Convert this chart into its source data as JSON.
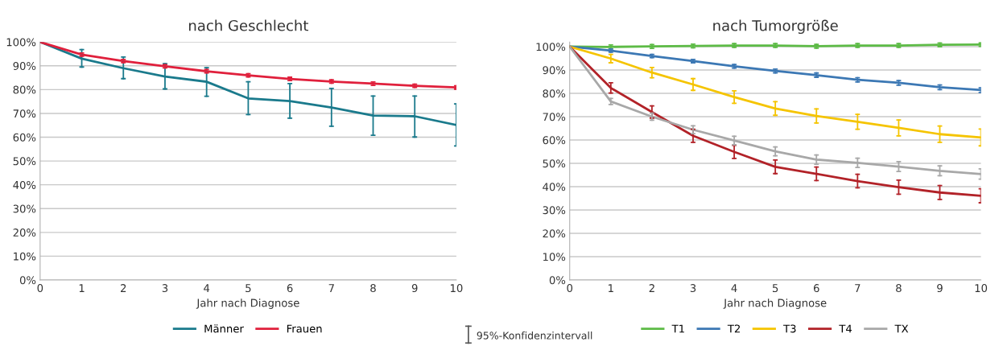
{
  "chart_data": [
    {
      "type": "line",
      "title": "nach Geschlecht",
      "xlabel": "Jahr nach Diagnose",
      "x": [
        0,
        1,
        2,
        3,
        4,
        5,
        6,
        7,
        8,
        9,
        10
      ],
      "xlim": [
        0,
        10
      ],
      "xticks": [
        0,
        1,
        2,
        3,
        4,
        5,
        6,
        7,
        8,
        9,
        10
      ],
      "ylim": [
        0,
        100
      ],
      "yticks": [
        {
          "value": 0,
          "label": "0%"
        },
        {
          "value": 10,
          "label": "10%"
        },
        {
          "value": 20,
          "label": "20%"
        },
        {
          "value": 30,
          "label": "30%"
        },
        {
          "value": 40,
          "label": "40%"
        },
        {
          "value": 50,
          "label": "50%"
        },
        {
          "value": 60,
          "label": "60%"
        },
        {
          "value": 70,
          "label": "70%"
        },
        {
          "value": 80,
          "label": "80%"
        },
        {
          "value": 90,
          "label": "90%"
        },
        {
          "value": 100,
          "label": "100%"
        }
      ],
      "grid": "y",
      "legend": "bottom",
      "marker": "none",
      "line_style": "solid",
      "series": [
        {
          "name": "Männer",
          "color": "#1a7a8c",
          "values": [
            100,
            93,
            89,
            85.5,
            83.3,
            76.3,
            75.2,
            72.5,
            69.1,
            68.8,
            65.1
          ],
          "errors": [
            null,
            [
              89.5,
              96.8
            ],
            [
              84.6,
              93.7
            ],
            [
              80.3,
              90.9
            ],
            [
              77.2,
              89.2
            ],
            [
              69.5,
              83.3
            ],
            [
              68,
              82.5
            ],
            [
              64.6,
              80.5
            ],
            [
              60.8,
              77.3
            ],
            [
              60.1,
              77.3
            ],
            [
              56.3,
              74
            ]
          ]
        },
        {
          "name": "Frauen",
          "color": "#e0203c",
          "values": [
            100,
            94.7,
            92,
            89.8,
            87.7,
            86,
            84.5,
            83.4,
            82.5,
            81.6,
            80.9
          ],
          "errors": [
            null,
            0.7,
            0.7,
            0.7,
            0.7,
            0.7,
            0.7,
            0.7,
            0.7,
            0.7,
            0.7
          ]
        }
      ]
    },
    {
      "type": "line",
      "title": "nach Tumorgröße",
      "xlabel": "Jahr nach Diagnose",
      "x": [
        0,
        1,
        2,
        3,
        4,
        5,
        6,
        7,
        8,
        9,
        10
      ],
      "xlim": [
        0,
        10
      ],
      "xticks": [
        0,
        1,
        2,
        3,
        4,
        5,
        6,
        7,
        8,
        9,
        10
      ],
      "ylim": [
        0,
        102
      ],
      "yticks": [
        {
          "value": 0,
          "label": "0%"
        },
        {
          "value": 10,
          "label": "10%"
        },
        {
          "value": 20,
          "label": "20%"
        },
        {
          "value": 30,
          "label": "30%"
        },
        {
          "value": 40,
          "label": "40%"
        },
        {
          "value": 50,
          "label": "50%"
        },
        {
          "value": 60,
          "label": "60%"
        },
        {
          "value": 70,
          "label": "70%"
        },
        {
          "value": 80,
          "label": "80%"
        },
        {
          "value": 90,
          "label": "90%"
        },
        {
          "value": 100,
          "label": "100%"
        }
      ],
      "grid": "y",
      "legend": "bottom",
      "marker": "none",
      "line_style": "solid",
      "annotations": [
        "95%-Konfidenzintervall"
      ],
      "series": [
        {
          "name": "T1",
          "color": "#5dbb46",
          "values": [
            100,
            99.9,
            100.1,
            100.3,
            100.5,
            100.5,
            100.2,
            100.5,
            100.5,
            100.8,
            100.9
          ],
          "errors": [
            null,
            0.8,
            0.8,
            0.8,
            0.8,
            0.8,
            0.8,
            0.8,
            0.8,
            0.8,
            0.8
          ]
        },
        {
          "name": "T2",
          "color": "#3c78b4",
          "values": [
            100,
            98.3,
            96,
            93.8,
            91.6,
            89.6,
            87.8,
            85.8,
            84.5,
            82.6,
            81.4
          ],
          "errors": [
            null,
            0.7,
            0.7,
            0.7,
            0.8,
            0.8,
            0.9,
            0.9,
            1,
            1,
            1
          ]
        },
        {
          "name": "T3",
          "color": "#f5c400",
          "values": [
            100,
            94.9,
            88.9,
            83.8,
            78.4,
            73.5,
            70.3,
            67.8,
            65.2,
            62.5,
            61.1
          ],
          "errors": [
            null,
            1.8,
            2.2,
            2.5,
            2.7,
            2.9,
            3,
            3.2,
            3.4,
            3.5,
            3.6
          ]
        },
        {
          "name": "T4",
          "color": "#b22228",
          "values": [
            100,
            82.3,
            72,
            61.8,
            54.9,
            48.5,
            45.5,
            42.4,
            39.8,
            37.5,
            36.1
          ],
          "errors": [
            null,
            2.2,
            2.6,
            2.8,
            2.8,
            2.9,
            2.9,
            2.9,
            3,
            3,
            3
          ]
        },
        {
          "name": "TX",
          "color": "#a8a8a8",
          "values": [
            100,
            76.5,
            70,
            64.4,
            59.8,
            55.1,
            51.6,
            50.2,
            48.6,
            46.8,
            45.4
          ],
          "errors": [
            null,
            1.3,
            1.5,
            1.7,
            1.8,
            1.9,
            2,
            2,
            2.1,
            2.1,
            2.2
          ]
        }
      ]
    }
  ]
}
